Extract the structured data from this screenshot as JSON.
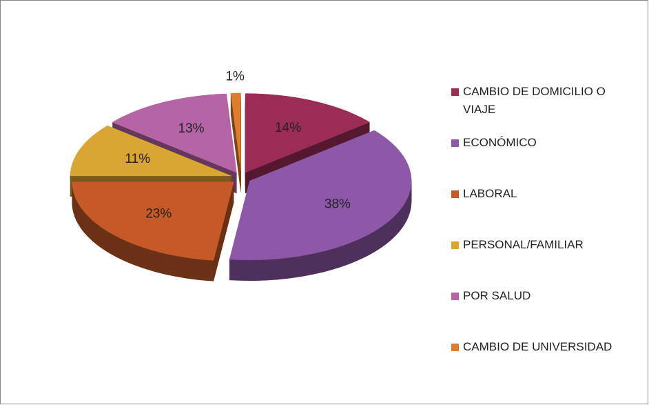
{
  "chart_data": {
    "type": "pie3d",
    "categories": [
      "CAMBIO DE DOMICILIO O VIAJE",
      "ECONÓMICO",
      "LABORAL",
      "PERSONAL/FAMILIAR",
      "POR SALUD",
      "CAMBIO DE UNIVERSIDAD"
    ],
    "values": [
      14,
      38,
      23,
      11,
      13,
      1
    ],
    "value_labels": [
      "14%",
      "38%",
      "23%",
      "11%",
      "13%",
      "1%"
    ],
    "colors": [
      "#9b2d55",
      "#8e58a8",
      "#c55a28",
      "#d9a533",
      "#b565a6",
      "#e07c30"
    ],
    "legend": "right"
  }
}
